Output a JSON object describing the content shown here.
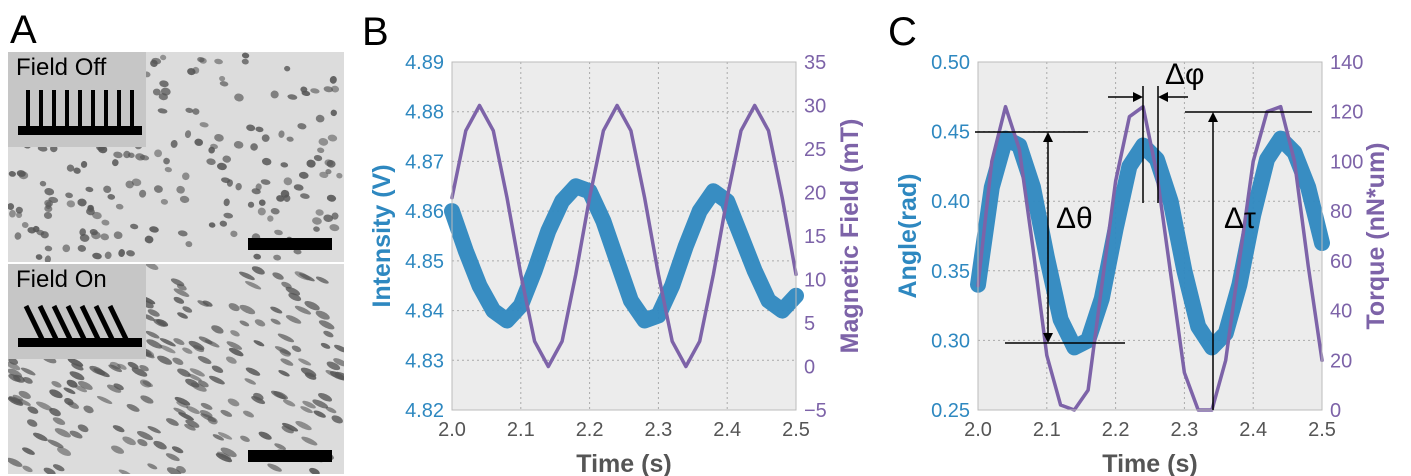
{
  "panel_a": {
    "letter": "A",
    "top": {
      "label": "Field Off"
    },
    "bottom": {
      "label": "Field On"
    }
  },
  "colors": {
    "intensity": "#2e88c0",
    "field": "#7d63a8",
    "plot_bg": "#ececec",
    "grid": "#aaaaaa"
  },
  "chart_data": [
    {
      "type": "line",
      "panel": "B",
      "xlabel": "Time (s)",
      "ylabel_left": "Intensity (V)",
      "ylabel_right": "Magnetic Field (mT)",
      "xlim": [
        2.0,
        2.5
      ],
      "ylim_left": [
        4.82,
        4.89
      ],
      "ylim_right": [
        -5,
        35
      ],
      "x_ticks": [
        "2.0",
        "2.1",
        "2.2",
        "2.3",
        "2.4",
        "2.5"
      ],
      "y_ticks_left": [
        "4.82",
        "4.83",
        "4.84",
        "4.85",
        "4.86",
        "4.87",
        "4.88",
        "4.89"
      ],
      "y_ticks_right": [
        "−5",
        "0",
        "5",
        "10",
        "15",
        "20",
        "25",
        "30",
        "35"
      ],
      "grid": true,
      "series": [
        {
          "axis": "left",
          "x": [
            2.0,
            2.02,
            2.04,
            2.06,
            2.08,
            2.1,
            2.12,
            2.14,
            2.16,
            2.18,
            2.2,
            2.22,
            2.24,
            2.26,
            2.28,
            2.3,
            2.32,
            2.34,
            2.36,
            2.38,
            2.4,
            2.42,
            2.44,
            2.46,
            2.48,
            2.5
          ],
          "y": [
            4.86,
            4.852,
            4.845,
            4.84,
            4.838,
            4.841,
            4.848,
            4.856,
            4.862,
            4.865,
            4.864,
            4.858,
            4.85,
            4.842,
            4.838,
            4.839,
            4.845,
            4.853,
            4.86,
            4.864,
            4.862,
            4.855,
            4.848,
            4.842,
            4.84,
            4.843
          ]
        },
        {
          "axis": "right",
          "x": [
            2.0,
            2.02,
            2.04,
            2.06,
            2.08,
            2.1,
            2.12,
            2.14,
            2.16,
            2.18,
            2.2,
            2.22,
            2.24,
            2.26,
            2.28,
            2.3,
            2.32,
            2.34,
            2.36,
            2.38,
            2.4,
            2.42,
            2.44,
            2.46,
            2.48,
            2.5
          ],
          "y": [
            19.4,
            27.1,
            30.0,
            27.1,
            19.4,
            10.6,
            2.9,
            0.0,
            2.9,
            10.6,
            19.4,
            27.1,
            30.0,
            27.1,
            19.4,
            10.6,
            2.9,
            0.0,
            2.9,
            10.6,
            19.4,
            27.1,
            30.0,
            27.1,
            19.4,
            10.6
          ]
        }
      ]
    },
    {
      "type": "line",
      "panel": "C",
      "xlabel": "Time (s)",
      "ylabel_left": "Angle(rad)",
      "ylabel_right": "Torque (nN*um)",
      "xlim": [
        2.0,
        2.5
      ],
      "ylim_left": [
        0.25,
        0.5
      ],
      "ylim_right": [
        0,
        140
      ],
      "x_ticks": [
        "2.0",
        "2.1",
        "2.2",
        "2.3",
        "2.4",
        "2.5"
      ],
      "y_ticks_left": [
        "0.25",
        "0.30",
        "0.35",
        "0.40",
        "0.45",
        "0.50"
      ],
      "y_ticks_right": [
        "0",
        "20",
        "40",
        "60",
        "80",
        "100",
        "120",
        "140"
      ],
      "grid": true,
      "annotations": [
        "Δθ",
        "Δφ",
        "Δτ"
      ],
      "series": [
        {
          "axis": "left",
          "x": [
            2.0,
            2.02,
            2.04,
            2.06,
            2.08,
            2.1,
            2.12,
            2.14,
            2.16,
            2.18,
            2.2,
            2.22,
            2.24,
            2.26,
            2.28,
            2.3,
            2.32,
            2.34,
            2.36,
            2.38,
            2.4,
            2.42,
            2.44,
            2.46,
            2.48,
            2.5
          ],
          "y": [
            0.34,
            0.41,
            0.445,
            0.44,
            0.41,
            0.36,
            0.315,
            0.295,
            0.3,
            0.33,
            0.38,
            0.425,
            0.44,
            0.43,
            0.4,
            0.35,
            0.31,
            0.295,
            0.305,
            0.34,
            0.39,
            0.43,
            0.445,
            0.435,
            0.41,
            0.37
          ]
        },
        {
          "axis": "right",
          "x": [
            2.0,
            2.02,
            2.04,
            2.06,
            2.08,
            2.1,
            2.12,
            2.14,
            2.16,
            2.18,
            2.2,
            2.22,
            2.24,
            2.26,
            2.28,
            2.3,
            2.32,
            2.34,
            2.36,
            2.38,
            2.4,
            2.42,
            2.44,
            2.46,
            2.48,
            2.5
          ],
          "y": [
            50,
            100,
            122,
            105,
            65,
            22,
            2,
            0,
            8,
            50,
            92,
            118,
            122,
            95,
            55,
            15,
            0,
            0,
            20,
            60,
            100,
            120,
            122,
            100,
            58,
            20
          ]
        }
      ]
    }
  ]
}
